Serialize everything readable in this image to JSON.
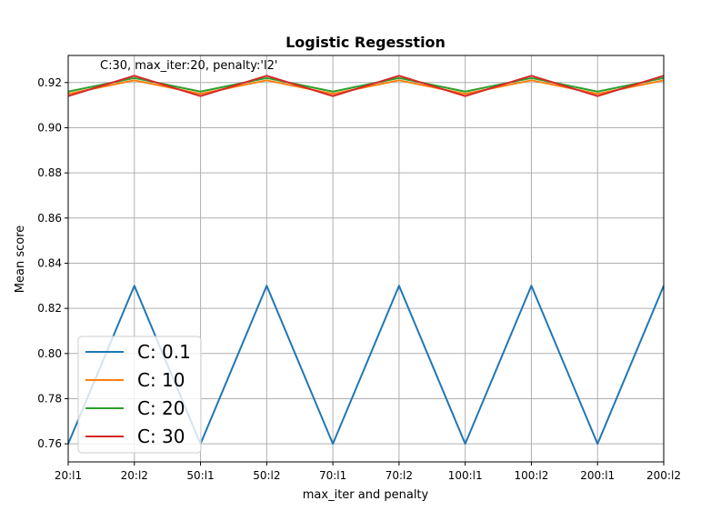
{
  "chart_data": {
    "type": "line",
    "title": "Logistic Regesstion",
    "xlabel": "max_iter and penalty",
    "ylabel": "Mean score",
    "annotation": "C:30, max_iter:20, penalty:'l2'",
    "categories": [
      "20:l1",
      "20:l2",
      "50:l1",
      "50:l2",
      "70:l1",
      "70:l2",
      "100:l1",
      "100:l2",
      "200:l1",
      "200:l2"
    ],
    "ylim": [
      0.752,
      0.932
    ],
    "yticks": [
      "0.76",
      "0.78",
      "0.80",
      "0.82",
      "0.84",
      "0.86",
      "0.88",
      "0.90",
      "0.92"
    ],
    "grid": true,
    "legend_position": "lower-left",
    "series": [
      {
        "name": "C: 0.1",
        "color": "#1f77b4",
        "values": [
          0.76,
          0.83,
          0.76,
          0.83,
          0.76,
          0.83,
          0.76,
          0.83,
          0.76,
          0.83
        ]
      },
      {
        "name": "C: 10",
        "color": "#ff7f0e",
        "values": [
          0.915,
          0.921,
          0.915,
          0.921,
          0.915,
          0.921,
          0.915,
          0.921,
          0.915,
          0.921
        ]
      },
      {
        "name": "C: 20",
        "color": "#2ca02c",
        "values": [
          0.916,
          0.922,
          0.916,
          0.922,
          0.916,
          0.922,
          0.916,
          0.922,
          0.916,
          0.922
        ]
      },
      {
        "name": "C: 30",
        "color": "#d62728",
        "values": [
          0.914,
          0.923,
          0.914,
          0.923,
          0.914,
          0.923,
          0.914,
          0.923,
          0.914,
          0.923
        ]
      }
    ]
  }
}
